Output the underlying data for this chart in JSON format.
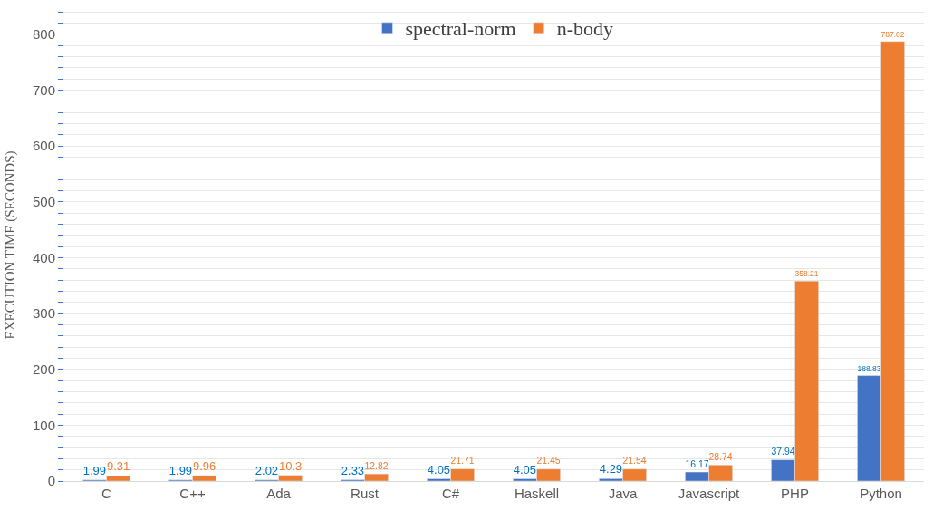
{
  "chart_data": {
    "type": "bar",
    "ylabel": "EXECUTION TIME (SECONDS)",
    "categories": [
      "C",
      "C++",
      "Ada",
      "Rust",
      "C#",
      "Haskell",
      "Java",
      "Javascript",
      "PHP",
      "Python"
    ],
    "series": [
      {
        "name": "spectral-norm",
        "color": "#4472c4",
        "values": [
          1.99,
          1.99,
          2.02,
          2.33,
          4.05,
          4.05,
          4.29,
          16.17,
          37.94,
          188.83
        ]
      },
      {
        "name": "n-body",
        "color": "#ed7d31",
        "values": [
          9.31,
          9.96,
          10.3,
          12.82,
          21.71,
          21.45,
          21.54,
          28.74,
          358.21,
          787.02
        ]
      }
    ],
    "ylim": [
      0,
      845
    ],
    "yticks": [
      0,
      {
        "value": 20,
        "label": null
      },
      {
        "value": 40,
        "label": null
      },
      {
        "value": 60,
        "label": null
      },
      {
        "value": 80,
        "label": null
      },
      100,
      {
        "value": 120,
        "label": null
      },
      {
        "value": 140,
        "label": null
      },
      {
        "value": 160,
        "label": null
      },
      {
        "value": 180,
        "label": null
      },
      200,
      {
        "value": 220,
        "label": null
      },
      {
        "value": 240,
        "label": null
      },
      {
        "value": 260,
        "label": null
      },
      {
        "value": 280,
        "label": null
      },
      300,
      {
        "value": 320,
        "label": null
      },
      {
        "value": 340,
        "label": null
      },
      {
        "value": 360,
        "label": null
      },
      {
        "value": 380,
        "label": null
      },
      400,
      {
        "value": 420,
        "label": null
      },
      {
        "value": 440,
        "label": null
      },
      {
        "value": 460,
        "label": null
      },
      {
        "value": 480,
        "label": null
      },
      500,
      {
        "value": 520,
        "label": null
      },
      {
        "value": 540,
        "label": null
      },
      {
        "value": 560,
        "label": null
      },
      {
        "value": 580,
        "label": null
      },
      600,
      {
        "value": 620,
        "label": null
      },
      {
        "value": 640,
        "label": null
      },
      {
        "value": 660,
        "label": null
      },
      {
        "value": 680,
        "label": null
      },
      700,
      {
        "value": 720,
        "label": null
      },
      {
        "value": 740,
        "label": null
      },
      {
        "value": 760,
        "label": null
      },
      {
        "value": 780,
        "label": null
      },
      800,
      {
        "value": 820,
        "label": null
      },
      {
        "value": 840,
        "label": null
      }
    ],
    "grid": "y",
    "legend": "top",
    "data_labels": true
  }
}
